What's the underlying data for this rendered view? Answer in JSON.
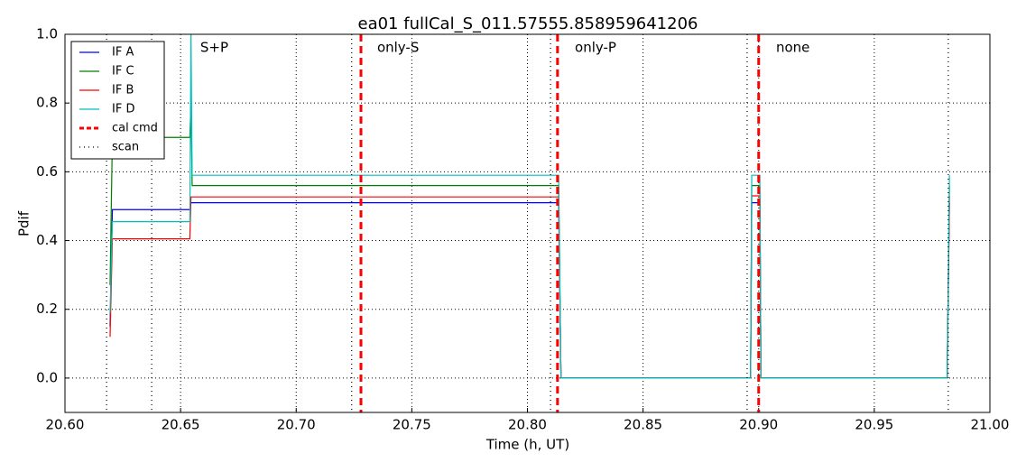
{
  "chart_data": {
    "type": "line",
    "title": "ea01 fullCal_S_011.57555.858959641206",
    "x_label": "Time (h, UT)",
    "y_label": "Pdif",
    "xlim": [
      20.6,
      21.0
    ],
    "ylim": [
      -0.1,
      1.0
    ],
    "xticks": [
      {
        "value": 20.6,
        "label": "20.60"
      },
      20.65,
      {
        "value": 20.7,
        "label": "20.70"
      },
      20.75,
      {
        "value": 20.8,
        "label": "20.80"
      },
      20.85,
      {
        "value": 20.9,
        "label": "20.90"
      },
      20.95,
      {
        "value": 21.0,
        "label": "21.00"
      }
    ],
    "yticks": [
      {
        "value": 0,
        "label": "0.0"
      },
      0.2,
      0.4,
      0.6,
      0.8,
      {
        "value": 1.0,
        "label": "1.0"
      }
    ],
    "grid": true,
    "legend": "upper left",
    "x": [
      20.6195,
      20.6205,
      20.654,
      20.6545,
      20.655,
      20.8135,
      20.8145,
      20.8965,
      20.897,
      20.9005,
      20.901,
      20.9815,
      20.9825
    ],
    "series": [
      {
        "name": "IF A",
        "color": "#0000ff",
        "values": [
          0.15,
          0.49,
          0.49,
          0.51,
          0.51,
          0.51,
          0.0,
          0.0,
          0.51,
          0.51,
          0.0,
          0.0,
          0.51
        ]
      },
      {
        "name": "IF C",
        "color": "#008000",
        "values": [
          0.27,
          0.7,
          0.7,
          0.8,
          0.56,
          0.56,
          0.0,
          0.0,
          0.56,
          0.56,
          0.0,
          0.0,
          0.56
        ]
      },
      {
        "name": "IF B",
        "color": "#ff0000",
        "values": [
          0.12,
          0.405,
          0.405,
          0.527,
          0.527,
          0.527,
          0.0,
          0.0,
          0.53,
          0.53,
          0.0,
          0.0,
          0.53
        ]
      },
      {
        "name": "IF D",
        "color": "#00bfbf",
        "values": [
          0.19,
          0.455,
          0.455,
          1.0,
          0.59,
          0.59,
          0.0,
          0.0,
          0.59,
          0.59,
          0.0,
          0.0,
          0.59
        ]
      }
    ],
    "vlines": [
      {
        "name": "cal cmd",
        "color": "#ff0000",
        "style": "dashed",
        "x": [
          20.728,
          20.813,
          20.9
        ]
      },
      {
        "name": "scan",
        "color": "#000000",
        "style": "dotted",
        "x": [
          20.618,
          20.6375,
          20.724,
          20.81,
          20.895,
          20.982
        ]
      }
    ],
    "annotations": [
      {
        "text": "S+P",
        "x": 20.6585,
        "y": 0.96,
        "color": "#ff0000"
      },
      {
        "text": "only-S",
        "x": 20.735,
        "y": 0.96,
        "color": "#ff0000"
      },
      {
        "text": "only-P",
        "x": 20.8205,
        "y": 0.96,
        "color": "#ff0000"
      },
      {
        "text": "none",
        "x": 20.9075,
        "y": 0.96,
        "color": "#ff0000"
      }
    ]
  }
}
